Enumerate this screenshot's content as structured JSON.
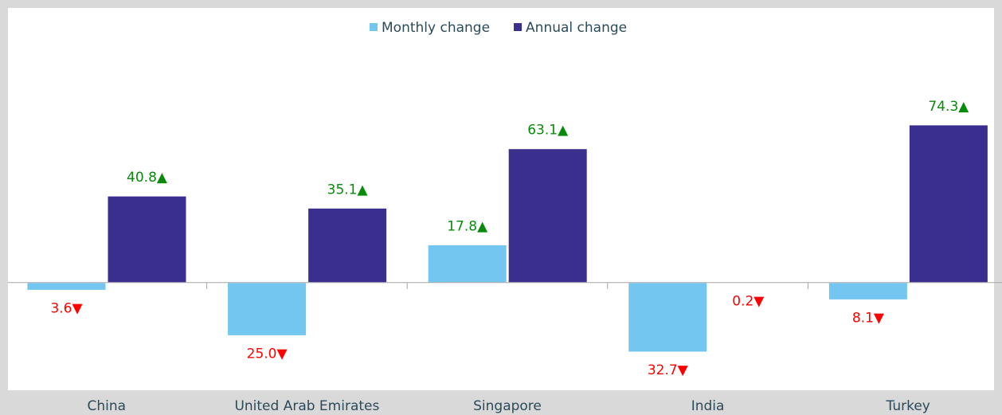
{
  "chart_data": {
    "type": "bar",
    "categories": [
      "China",
      "United Arab Emirates",
      "Singapore",
      "India",
      "Turkey"
    ],
    "series": [
      {
        "name": "Monthly change",
        "color": "#73c6ef",
        "values": [
          -3.6,
          -25.0,
          17.8,
          -32.7,
          -8.1
        ],
        "value_labels": [
          "3.6▼",
          "25.0▼",
          "17.8▲",
          "32.7▼",
          "8.1▼"
        ]
      },
      {
        "name": "Annual change",
        "color": "#3a2f8e",
        "values": [
          40.8,
          35.1,
          63.1,
          -0.2,
          74.3
        ],
        "value_labels": [
          "40.8▲",
          "35.1▲",
          "63.1▲",
          "0.2▼",
          "74.3▲"
        ]
      }
    ],
    "label_colors": {
      "up": "#0a8a0a",
      "down": "#ff0000"
    },
    "ylim": [
      -50,
      130
    ],
    "legend": "top"
  }
}
